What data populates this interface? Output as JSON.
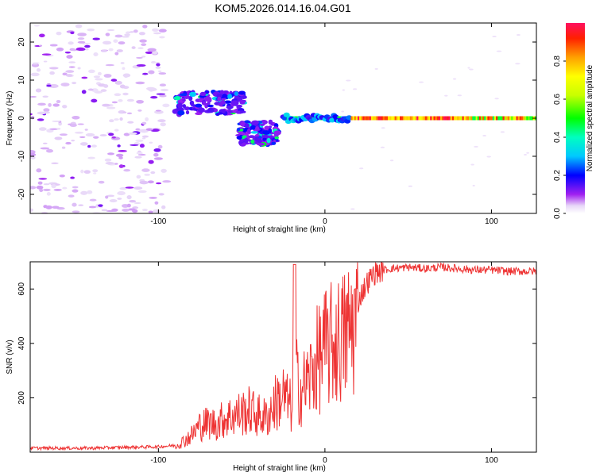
{
  "title": "KOM5.2026.014.16.04.G01",
  "chart_data": [
    {
      "type": "heatmap",
      "xlabel": "Height of straight line (km)",
      "ylabel": "Frequency (Hz)",
      "xlim": [
        -177,
        127
      ],
      "ylim": [
        -25,
        25
      ],
      "x_ticks": [
        -100,
        0,
        100
      ],
      "x_tick_labels": [
        "-100",
        "0",
        "100"
      ],
      "y_ticks": [
        -20,
        -10,
        0,
        10,
        20
      ],
      "y_tick_labels": [
        "-20",
        "-10",
        "0",
        "10",
        "20"
      ],
      "colorbar": {
        "label": "Normalized spectral amplitude",
        "range": [
          0,
          1
        ],
        "ticks": [
          0.0,
          0.2,
          0.4,
          0.6,
          0.8
        ],
        "tick_labels": [
          "0.0",
          "0.2",
          "0.4",
          "0.6",
          "0.8"
        ]
      },
      "features": [
        {
          "name": "scattered noise",
          "x_range": [
            -177,
            -95
          ],
          "f_range": [
            -25,
            25
          ],
          "amplitude": 0.05
        },
        {
          "name": "upper cluster",
          "x_range": [
            -90,
            -48
          ],
          "f_range": [
            1,
            7
          ],
          "amplitude": 0.15
        },
        {
          "name": "lower cluster",
          "x_range": [
            -52,
            -28
          ],
          "f_range": [
            -7,
            -1
          ],
          "amplitude": 0.15
        },
        {
          "name": "carrier line",
          "x_range": [
            -25,
            127
          ],
          "f_center": 0,
          "amplitude_range": [
            0.2,
            1.0
          ]
        }
      ]
    },
    {
      "type": "line",
      "xlabel": "Height of straight line (km)",
      "ylabel": "SNR (v/v)",
      "xlim": [
        -177,
        127
      ],
      "ylim": [
        0,
        700
      ],
      "x_ticks": [
        -100,
        0,
        100
      ],
      "x_tick_labels": [
        "-100",
        "0",
        "100"
      ],
      "y_ticks": [
        200,
        400,
        600
      ],
      "y_tick_labels": [
        "200",
        "400",
        "600"
      ],
      "color": "#ee3333",
      "series": [
        {
          "name": "SNR",
          "x": [
            -177,
            -160,
            -140,
            -120,
            -100,
            -90,
            -85,
            -80,
            -75,
            -70,
            -65,
            -60,
            -55,
            -50,
            -45,
            -40,
            -35,
            -30,
            -25,
            -20,
            -18,
            -15,
            -10,
            -5,
            0,
            5,
            10,
            15,
            20,
            25,
            30,
            35,
            40,
            50,
            60,
            70,
            80,
            90,
            100,
            110,
            120,
            127
          ],
          "values": [
            15,
            15,
            15,
            18,
            20,
            25,
            45,
            70,
            110,
            120,
            115,
            140,
            150,
            160,
            170,
            150,
            140,
            200,
            230,
            180,
            320,
            250,
            290,
            370,
            420,
            440,
            460,
            500,
            560,
            620,
            660,
            670,
            675,
            680,
            675,
            680,
            675,
            670,
            670,
            665,
            665,
            665
          ]
        }
      ]
    }
  ]
}
